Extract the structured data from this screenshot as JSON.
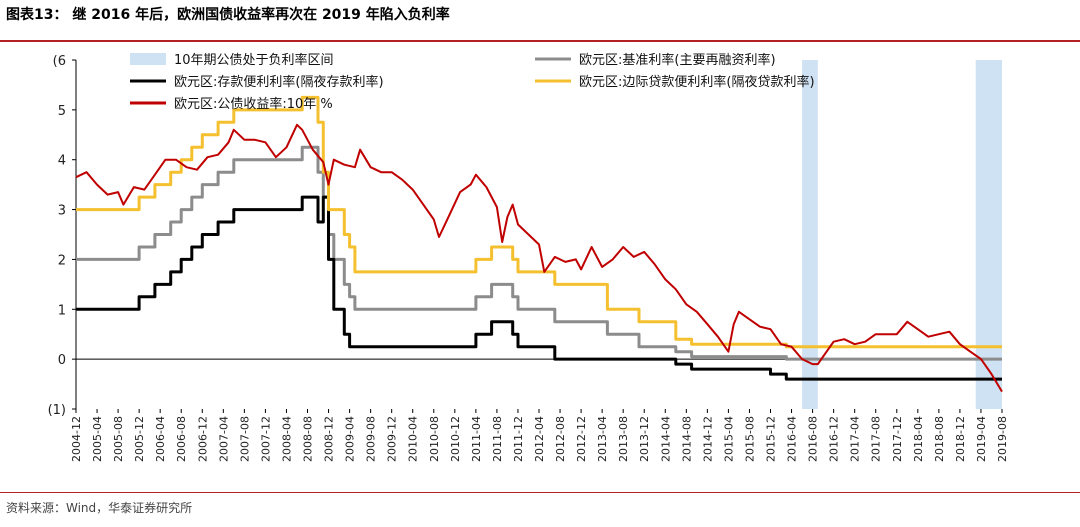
{
  "header": {
    "title": "图表13：  继 2016 年后，欧洲国债收益率再次在 2019 年陷入负利率"
  },
  "footer": {
    "source": "资料来源：Wind，华泰证券研究所"
  },
  "chart_data": {
    "type": "line",
    "title": "图表13：  继 2016 年后，欧洲国债收益率再次在 2019 年陷入负利率",
    "ylabel_top": "(%)",
    "ylim": [
      -1,
      6
    ],
    "yticks": [
      {
        "value": 6,
        "label": "(6"
      },
      {
        "value": 5,
        "label": "5"
      },
      {
        "value": 4,
        "label": "4"
      },
      {
        "value": 3,
        "label": "3"
      },
      {
        "value": 2,
        "label": "2"
      },
      {
        "value": 1,
        "label": "1"
      },
      {
        "value": 0,
        "label": "0"
      },
      {
        "value": -1,
        "label": "(1)"
      }
    ],
    "xlim": [
      "2004-12",
      "2019-08"
    ],
    "xticks": [
      "2004-12",
      "2005-04",
      "2005-08",
      "2005-12",
      "2006-04",
      "2006-08",
      "2006-12",
      "2007-04",
      "2007-08",
      "2007-12",
      "2008-04",
      "2008-08",
      "2008-12",
      "2009-04",
      "2009-08",
      "2009-12",
      "2010-04",
      "2010-08",
      "2010-12",
      "2011-04",
      "2011-08",
      "2011-12",
      "2012-04",
      "2012-08",
      "2012-12",
      "2013-04",
      "2013-08",
      "2013-12",
      "2014-04",
      "2014-08",
      "2014-12",
      "2015-04",
      "2015-08",
      "2015-12",
      "2016-04",
      "2016-08",
      "2016-12",
      "2017-04",
      "2017-08",
      "2017-12",
      "2018-04",
      "2018-08",
      "2018-12",
      "2019-04",
      "2019-08"
    ],
    "legend": [
      {
        "name": "10年期公债处于负利率区间",
        "kind": "area",
        "color": "#cfe2f3"
      },
      {
        "name": "欧元区:基准利率(主要再融资利率)",
        "kind": "line",
        "color": "#8c8c8c"
      },
      {
        "name": "欧元区:存款便利利率(隔夜存款利率)",
        "kind": "line",
        "color": "#000000"
      },
      {
        "name": "欧元区:边际贷款便利利率(隔夜贷款利率)",
        "kind": "line",
        "color": "#f5c02f"
      },
      {
        "name": "欧元区:公债收益率:10年  %",
        "kind": "line",
        "color": "#c00000"
      }
    ],
    "shaded_periods": [
      {
        "start": "2016-06",
        "end": "2016-09"
      },
      {
        "start": "2019-03",
        "end": "2019-08"
      }
    ],
    "series": [
      {
        "name": "欧元区:基准利率(主要再融资利率)",
        "color": "#8c8c8c",
        "width": 3,
        "step": true,
        "points": [
          [
            "2004-12",
            2.0
          ],
          [
            "2005-12",
            2.25
          ],
          [
            "2006-03",
            2.5
          ],
          [
            "2006-06",
            2.75
          ],
          [
            "2006-08",
            3.0
          ],
          [
            "2006-10",
            3.25
          ],
          [
            "2006-12",
            3.5
          ],
          [
            "2007-03",
            3.75
          ],
          [
            "2007-06",
            4.0
          ],
          [
            "2008-07",
            4.25
          ],
          [
            "2008-10",
            3.75
          ],
          [
            "2008-11",
            3.25
          ],
          [
            "2008-12",
            2.5
          ],
          [
            "2009-01",
            2.0
          ],
          [
            "2009-03",
            1.5
          ],
          [
            "2009-04",
            1.25
          ],
          [
            "2009-05",
            1.0
          ],
          [
            "2011-04",
            1.25
          ],
          [
            "2011-07",
            1.5
          ],
          [
            "2011-11",
            1.25
          ],
          [
            "2011-12",
            1.0
          ],
          [
            "2012-07",
            0.75
          ],
          [
            "2013-05",
            0.5
          ],
          [
            "2013-11",
            0.25
          ],
          [
            "2014-06",
            0.15
          ],
          [
            "2014-09",
            0.05
          ],
          [
            "2016-03",
            0.0
          ],
          [
            "2019-08",
            0.0
          ]
        ]
      },
      {
        "name": "欧元区:存款便利利率(隔夜存款利率)",
        "color": "#000000",
        "width": 3,
        "step": true,
        "points": [
          [
            "2004-12",
            1.0
          ],
          [
            "2005-12",
            1.25
          ],
          [
            "2006-03",
            1.5
          ],
          [
            "2006-06",
            1.75
          ],
          [
            "2006-08",
            2.0
          ],
          [
            "2006-10",
            2.25
          ],
          [
            "2006-12",
            2.5
          ],
          [
            "2007-03",
            2.75
          ],
          [
            "2007-06",
            3.0
          ],
          [
            "2008-07",
            3.25
          ],
          [
            "2008-10",
            2.75
          ],
          [
            "2008-11",
            3.25
          ],
          [
            "2008-12",
            2.0
          ],
          [
            "2009-01",
            1.0
          ],
          [
            "2009-03",
            0.5
          ],
          [
            "2009-04",
            0.25
          ],
          [
            "2011-04",
            0.5
          ],
          [
            "2011-07",
            0.75
          ],
          [
            "2011-11",
            0.5
          ],
          [
            "2011-12",
            0.25
          ],
          [
            "2012-07",
            0.0
          ],
          [
            "2014-06",
            -0.1
          ],
          [
            "2014-09",
            -0.2
          ],
          [
            "2015-12",
            -0.3
          ],
          [
            "2016-03",
            -0.4
          ],
          [
            "2019-08",
            -0.4
          ]
        ]
      },
      {
        "name": "欧元区:边际贷款便利利率(隔夜贷款利率)",
        "color": "#f5c02f",
        "width": 3,
        "step": true,
        "points": [
          [
            "2004-12",
            3.0
          ],
          [
            "2005-12",
            3.25
          ],
          [
            "2006-03",
            3.5
          ],
          [
            "2006-06",
            3.75
          ],
          [
            "2006-08",
            4.0
          ],
          [
            "2006-10",
            4.25
          ],
          [
            "2006-12",
            4.5
          ],
          [
            "2007-03",
            4.75
          ],
          [
            "2007-06",
            5.0
          ],
          [
            "2008-07",
            5.25
          ],
          [
            "2008-10",
            4.75
          ],
          [
            "2008-11",
            3.75
          ],
          [
            "2008-12",
            3.0
          ],
          [
            "2009-01",
            3.0
          ],
          [
            "2009-03",
            2.5
          ],
          [
            "2009-04",
            2.25
          ],
          [
            "2009-05",
            1.75
          ],
          [
            "2011-04",
            2.0
          ],
          [
            "2011-07",
            2.25
          ],
          [
            "2011-11",
            2.0
          ],
          [
            "2011-12",
            1.75
          ],
          [
            "2012-07",
            1.5
          ],
          [
            "2013-05",
            1.0
          ],
          [
            "2013-11",
            0.75
          ],
          [
            "2014-06",
            0.4
          ],
          [
            "2014-09",
            0.3
          ],
          [
            "2015-12",
            0.3
          ],
          [
            "2016-03",
            0.25
          ],
          [
            "2019-08",
            0.25
          ]
        ]
      },
      {
        "name": "欧元区:公债收益率:10年  %",
        "color": "#c00000",
        "width": 2,
        "step": false,
        "points": [
          [
            "2004-12",
            3.65
          ],
          [
            "2005-02",
            3.75
          ],
          [
            "2005-04",
            3.5
          ],
          [
            "2005-06",
            3.3
          ],
          [
            "2005-08",
            3.35
          ],
          [
            "2005-09",
            3.1
          ],
          [
            "2005-11",
            3.45
          ],
          [
            "2006-01",
            3.4
          ],
          [
            "2006-03",
            3.7
          ],
          [
            "2006-05",
            4.0
          ],
          [
            "2006-07",
            4.0
          ],
          [
            "2006-09",
            3.85
          ],
          [
            "2006-11",
            3.8
          ],
          [
            "2007-01",
            4.05
          ],
          [
            "2007-03",
            4.1
          ],
          [
            "2007-05",
            4.35
          ],
          [
            "2007-06",
            4.6
          ],
          [
            "2007-08",
            4.4
          ],
          [
            "2007-10",
            4.4
          ],
          [
            "2007-12",
            4.35
          ],
          [
            "2008-02",
            4.05
          ],
          [
            "2008-04",
            4.25
          ],
          [
            "2008-06",
            4.7
          ],
          [
            "2008-07",
            4.6
          ],
          [
            "2008-09",
            4.2
          ],
          [
            "2008-11",
            3.95
          ],
          [
            "2008-12",
            3.5
          ],
          [
            "2009-01",
            4.0
          ],
          [
            "2009-03",
            3.9
          ],
          [
            "2009-05",
            3.85
          ],
          [
            "2009-06",
            4.2
          ],
          [
            "2009-08",
            3.85
          ],
          [
            "2009-10",
            3.75
          ],
          [
            "2009-12",
            3.75
          ],
          [
            "2010-02",
            3.6
          ],
          [
            "2010-04",
            3.4
          ],
          [
            "2010-06",
            3.1
          ],
          [
            "2010-08",
            2.8
          ],
          [
            "2010-09",
            2.45
          ],
          [
            "2010-11",
            2.9
          ],
          [
            "2011-01",
            3.35
          ],
          [
            "2011-03",
            3.5
          ],
          [
            "2011-04",
            3.7
          ],
          [
            "2011-06",
            3.45
          ],
          [
            "2011-08",
            3.05
          ],
          [
            "2011-09",
            2.35
          ],
          [
            "2011-10",
            2.85
          ],
          [
            "2011-11",
            3.1
          ],
          [
            "2011-12",
            2.7
          ],
          [
            "2012-02",
            2.5
          ],
          [
            "2012-04",
            2.3
          ],
          [
            "2012-05",
            1.75
          ],
          [
            "2012-07",
            2.05
          ],
          [
            "2012-09",
            1.95
          ],
          [
            "2012-11",
            2.0
          ],
          [
            "2012-12",
            1.8
          ],
          [
            "2013-02",
            2.25
          ],
          [
            "2013-04",
            1.85
          ],
          [
            "2013-06",
            2.0
          ],
          [
            "2013-08",
            2.25
          ],
          [
            "2013-10",
            2.05
          ],
          [
            "2013-12",
            2.15
          ],
          [
            "2014-02",
            1.9
          ],
          [
            "2014-04",
            1.6
          ],
          [
            "2014-06",
            1.4
          ],
          [
            "2014-08",
            1.1
          ],
          [
            "2014-10",
            0.95
          ],
          [
            "2014-12",
            0.7
          ],
          [
            "2015-02",
            0.45
          ],
          [
            "2015-04",
            0.15
          ],
          [
            "2015-05",
            0.7
          ],
          [
            "2015-06",
            0.95
          ],
          [
            "2015-08",
            0.8
          ],
          [
            "2015-10",
            0.65
          ],
          [
            "2015-12",
            0.6
          ],
          [
            "2016-02",
            0.3
          ],
          [
            "2016-04",
            0.25
          ],
          [
            "2016-06",
            0.0
          ],
          [
            "2016-08",
            -0.1
          ],
          [
            "2016-09",
            -0.1
          ],
          [
            "2016-10",
            0.05
          ],
          [
            "2016-12",
            0.35
          ],
          [
            "2017-02",
            0.4
          ],
          [
            "2017-04",
            0.3
          ],
          [
            "2017-06",
            0.35
          ],
          [
            "2017-08",
            0.5
          ],
          [
            "2017-10",
            0.5
          ],
          [
            "2017-12",
            0.5
          ],
          [
            "2018-02",
            0.75
          ],
          [
            "2018-04",
            0.6
          ],
          [
            "2018-06",
            0.45
          ],
          [
            "2018-08",
            0.5
          ],
          [
            "2018-10",
            0.55
          ],
          [
            "2018-12",
            0.3
          ],
          [
            "2019-02",
            0.15
          ],
          [
            "2019-04",
            0.0
          ],
          [
            "2019-06",
            -0.3
          ],
          [
            "2019-08",
            -0.65
          ]
        ]
      }
    ]
  }
}
